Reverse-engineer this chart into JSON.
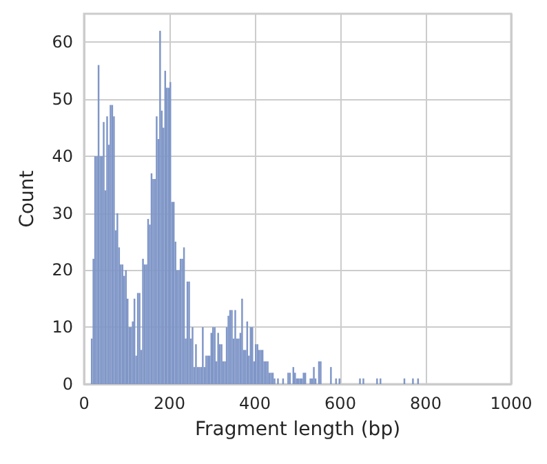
{
  "chart_data": {
    "type": "histogram",
    "xlabel": "Fragment length (bp)",
    "ylabel": "Count",
    "color": "#7f96c7",
    "bins": [
      16,
      20,
      24,
      28,
      32,
      36,
      40,
      44,
      48,
      52,
      56,
      60,
      64,
      68,
      72,
      76,
      80,
      84,
      88,
      92,
      96,
      100,
      104,
      108,
      112,
      116,
      120,
      124,
      128,
      132,
      136,
      140,
      144,
      148,
      152,
      156,
      160,
      164,
      168,
      172,
      176,
      180,
      184,
      188,
      192,
      196,
      200,
      204,
      208,
      212,
      216,
      220,
      224,
      228,
      232,
      236,
      240,
      244,
      248,
      252,
      256,
      260,
      264,
      268,
      272,
      276,
      280,
      284,
      288,
      292,
      296,
      300,
      304,
      308,
      312,
      316,
      320,
      324,
      328,
      332,
      336,
      340,
      344,
      348,
      352,
      356,
      360,
      364,
      368,
      372,
      376,
      380,
      384,
      388,
      392,
      396,
      400,
      404,
      408,
      412,
      416,
      420,
      424,
      428,
      432,
      436,
      440,
      444,
      448,
      452,
      456,
      460,
      464,
      468,
      472,
      476,
      480,
      484,
      488,
      492,
      496,
      500,
      504,
      508,
      512,
      516,
      520,
      524,
      528,
      532,
      536,
      540,
      544,
      548,
      552,
      556,
      560,
      564,
      568,
      572,
      576,
      580,
      584,
      588,
      592,
      596,
      600,
      604,
      608,
      612,
      616,
      620,
      624,
      628,
      632,
      636,
      640,
      644,
      648,
      652,
      656,
      660,
      664,
      668,
      672,
      676,
      680,
      684,
      688,
      692,
      696,
      700,
      704,
      708,
      712,
      716,
      720,
      724,
      728,
      732,
      736,
      740,
      744,
      748,
      752,
      756,
      760,
      764,
      768,
      772,
      776,
      780,
      784
    ],
    "values": [
      8,
      22,
      40,
      40,
      56,
      40,
      40,
      46,
      34,
      47,
      42,
      49,
      49,
      47,
      27,
      30,
      24,
      21,
      21,
      19,
      20,
      15,
      10,
      10,
      11,
      15,
      5,
      16,
      16,
      6,
      22,
      21,
      21,
      29,
      28,
      37,
      36,
      36,
      47,
      43,
      62,
      48,
      45,
      55,
      52,
      52,
      53,
      32,
      32,
      25,
      20,
      20,
      22,
      22,
      24,
      8,
      18,
      18,
      8,
      10,
      3,
      7,
      3,
      3,
      3,
      10,
      3,
      5,
      5,
      5,
      9,
      10,
      10,
      4,
      9,
      7,
      7,
      4,
      4,
      10,
      12,
      13,
      13,
      8,
      13,
      8,
      8,
      9,
      15,
      6,
      6,
      11,
      5,
      10,
      10,
      4,
      7,
      7,
      6,
      6,
      6,
      4,
      4,
      4,
      2,
      2,
      2,
      1,
      0,
      1,
      0,
      0,
      1,
      0,
      0,
      2,
      2,
      0,
      3,
      2,
      1,
      1,
      1,
      1,
      2,
      2,
      0,
      0,
      1,
      1,
      3,
      1,
      0,
      4,
      4,
      0,
      0,
      0,
      0,
      0,
      3,
      0,
      0,
      1,
      0,
      1,
      0,
      0,
      0,
      0,
      0,
      0,
      0,
      0,
      0,
      0,
      0,
      1,
      0,
      1,
      0,
      0,
      0,
      0,
      0,
      0,
      0,
      1,
      0,
      1,
      0,
      0,
      0,
      0,
      0,
      0,
      0,
      0,
      0,
      0,
      0,
      0,
      0,
      1,
      0,
      0,
      0,
      0,
      1,
      0,
      0,
      1
    ],
    "xlim": [
      0,
      1000
    ],
    "xticks": [
      0,
      200,
      400,
      600,
      800,
      1000
    ],
    "ylim": [
      0,
      65
    ],
    "yticks": [
      0,
      10,
      20,
      30,
      40,
      50,
      60
    ],
    "grid": true
  }
}
